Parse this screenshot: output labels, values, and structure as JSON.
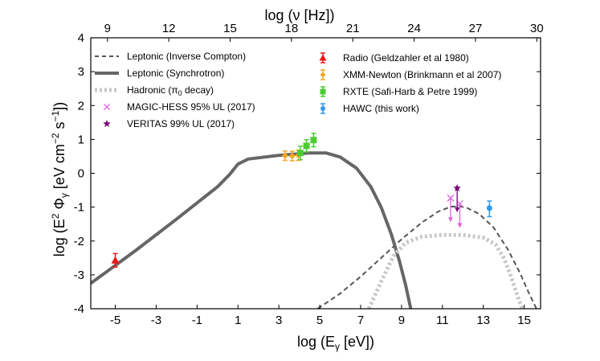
{
  "chart_data": {
    "type": "line",
    "xlabel": "log (E",
    "xlabel_sub": "γ",
    "xlabel_tail": " [eV])",
    "ylabel": "log (E",
    "ylabel_sup": "2",
    "ylabel_mid": " Φ",
    "ylabel_sub": "γ",
    "ylabel_tail": " [eV cm",
    "ylabel_exp1": "−2",
    "ylabel_tail2": " s",
    "ylabel_exp2": "−1",
    "ylabel_end": "])",
    "top_xlabel": "log (ν [Hz])",
    "xlim": [
      -6.2,
      15.8
    ],
    "ylim": [
      -4,
      4
    ],
    "xticks": [
      "-5",
      "-3",
      "-1",
      "1",
      "3",
      "5",
      "7",
      "9",
      "11",
      "13",
      "15"
    ],
    "xtick_values": [
      -5,
      -3,
      -1,
      1,
      3,
      5,
      7,
      9,
      11,
      13,
      15
    ],
    "yticks": [
      "-4",
      "-3",
      "-2",
      "-1",
      "0",
      "1",
      "2",
      "3",
      "4"
    ],
    "ytick_values": [
      -4,
      -3,
      -2,
      -1,
      0,
      1,
      2,
      3,
      4
    ],
    "top_ticks": [
      "9",
      "12",
      "15",
      "18",
      "21",
      "24",
      "27",
      "30"
    ],
    "top_tick_values": [
      9,
      12,
      15,
      18,
      21,
      24,
      27,
      30
    ],
    "hz_offset": 14.383,
    "series": [
      {
        "name": "Leptonic (Inverse Compton)",
        "style": "dashed",
        "color": "#555555",
        "x": [
          4.9,
          6,
          7,
          8,
          9,
          10,
          10.8,
          11.4,
          11.8,
          12.2,
          12.8,
          13.5,
          14.2,
          14.8,
          15.2,
          15.6
        ],
        "y": [
          -4.0,
          -3.55,
          -3.05,
          -2.5,
          -1.95,
          -1.45,
          -1.13,
          -0.99,
          -0.97,
          -1.02,
          -1.2,
          -1.6,
          -2.25,
          -2.95,
          -3.5,
          -4.0
        ]
      },
      {
        "name": "Leptonic (Synchrotron)",
        "style": "solid",
        "color": "#666666",
        "x": [
          -6.2,
          -4,
          -2,
          0,
          0.6,
          1,
          1.5,
          3,
          4.5,
          5.3,
          6,
          6.8,
          7.5,
          8,
          8.5,
          8.9,
          9.2,
          9.45
        ],
        "y": [
          -3.25,
          -2.28,
          -1.35,
          -0.4,
          -0.03,
          0.27,
          0.42,
          0.53,
          0.6,
          0.6,
          0.48,
          0.15,
          -0.4,
          -1.0,
          -1.8,
          -2.6,
          -3.3,
          -4.0
        ]
      },
      {
        "name": "Hadronic (π0 decay)",
        "style": "dotted",
        "color": "#c8c8c8",
        "x": [
          7.4,
          8,
          8.6,
          9.2,
          10,
          11,
          12,
          13,
          13.6,
          14.0,
          14.3,
          14.6,
          14.9
        ],
        "y": [
          -4.0,
          -3.2,
          -2.45,
          -2.05,
          -1.87,
          -1.82,
          -1.82,
          -1.9,
          -2.1,
          -2.5,
          -2.95,
          -3.5,
          -4.0
        ]
      }
    ],
    "points": [
      {
        "name": "Radio (Geldzahler et al 1980)",
        "marker": "triangle",
        "color": "#e8191a",
        "data": [
          {
            "x": -5.0,
            "y": -2.57,
            "ylo": -2.77,
            "yhi": -2.37
          }
        ]
      },
      {
        "name": "XMM-Newton (Brinkmann et al 2007)",
        "marker": "diamond",
        "color": "#f5a623",
        "data": [
          {
            "x": 3.3,
            "y": 0.52,
            "ylo": 0.38,
            "yhi": 0.66
          },
          {
            "x": 3.65,
            "y": 0.51,
            "ylo": 0.37,
            "yhi": 0.65
          },
          {
            "x": 3.95,
            "y": 0.53,
            "ylo": 0.38,
            "yhi": 0.68
          }
        ]
      },
      {
        "name": "RXTE (Safi-Harb & Petre 1999)",
        "marker": "square",
        "color": "#4ccc32",
        "data": [
          {
            "x": 4.05,
            "y": 0.6,
            "ylo": 0.4,
            "yhi": 0.8
          },
          {
            "x": 4.35,
            "y": 0.81,
            "ylo": 0.63,
            "yhi": 0.99
          },
          {
            "x": 4.7,
            "y": 0.98,
            "ylo": 0.78,
            "yhi": 1.18
          }
        ]
      },
      {
        "name": "HAWC (this work)",
        "marker": "circle",
        "color": "#3399ee",
        "data": [
          {
            "x": 13.3,
            "y": -1.03,
            "ylo": -1.28,
            "yhi": -0.82
          }
        ]
      }
    ],
    "upper_limits": [
      {
        "name": "MAGIC-HESS 95% UL (2017)",
        "marker": "x",
        "color": "#dd66dd",
        "data": [
          {
            "x": 11.4,
            "y": -0.73
          },
          {
            "x": 11.85,
            "y": -0.9
          }
        ]
      },
      {
        "name": "VERITAS 99% UL (2017)",
        "marker": "star",
        "color": "#770077",
        "data": [
          {
            "x": 11.72,
            "y": -0.44
          }
        ]
      }
    ],
    "legend_left": [
      {
        "label": "Leptonic (Inverse Compton)",
        "kind": "dashed"
      },
      {
        "label": "Leptonic (Synchrotron)",
        "kind": "solid"
      },
      {
        "label": "Hadronic (π",
        "sub": "0",
        "tail": " decay)",
        "kind": "dotted"
      },
      {
        "label": "MAGIC-HESS 95% UL (2017)",
        "kind": "x"
      },
      {
        "label": "VERITAS 99% UL (2017)",
        "kind": "star"
      }
    ],
    "legend_right": [
      {
        "label": "Radio (Geldzahler et al 1980)",
        "kind": "triangle"
      },
      {
        "label": "XMM-Newton (Brinkmann et al 2007)",
        "kind": "diamond"
      },
      {
        "label": "RXTE (Safi-Harb & Petre 1999)",
        "kind": "square"
      },
      {
        "label": "HAWC (this work)",
        "kind": "circle"
      }
    ],
    "colors": {
      "ic": "#555555",
      "sync": "#666666",
      "hadronic": "#c8c8c8",
      "magic": "#dd66dd",
      "veritas": "#770077",
      "radio": "#e8191a",
      "xmm": "#f5a623",
      "rxte": "#4ccc32",
      "hawc": "#3399ee"
    }
  }
}
